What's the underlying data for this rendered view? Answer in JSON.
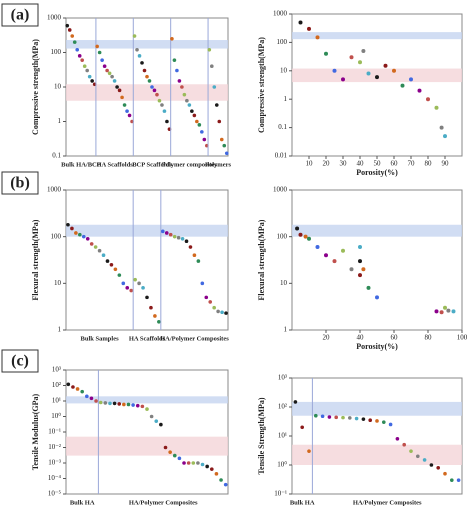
{
  "panels": [
    "(a)",
    "(b)",
    "(c)"
  ],
  "palette": [
    "#1a1a1a",
    "#8b1a1a",
    "#d2691e",
    "#2e8b57",
    "#4169e1",
    "#8b008b",
    "#c0504d",
    "#9bbb59",
    "#808080",
    "#4bacc6"
  ],
  "chart_data": [
    {
      "type": "strip",
      "y_label": "Compressive strength(MPa)",
      "log_y": true,
      "ylim": [
        0.1,
        1000
      ],
      "yticks": [
        0.1,
        1,
        10,
        100,
        1000
      ],
      "bands": [
        {
          "range": [
            130,
            230
          ],
          "color": "#c6d4f0"
        },
        {
          "range": [
            4,
            12
          ],
          "color": "#f4d4d8"
        }
      ],
      "groups": [
        {
          "label": "Bulk HA/BCP",
          "values": [
            600,
            450,
            300,
            200,
            120,
            80,
            60,
            40,
            30,
            20,
            15,
            12
          ]
        },
        {
          "label": "HA Scaffolds",
          "values": [
            150,
            100,
            60,
            40,
            30,
            25,
            20,
            15,
            10,
            8,
            5,
            3,
            2,
            1.5,
            1
          ]
        },
        {
          "label": "BCP Scaffolds",
          "values": [
            300,
            120,
            80,
            50,
            30,
            20,
            15,
            10,
            8,
            6,
            4,
            3,
            2,
            1,
            0.6
          ]
        },
        {
          "label": "Polymer composites",
          "values": [
            250,
            60,
            30,
            15,
            10,
            6,
            4,
            3,
            2,
            1.5,
            1,
            0.8,
            0.5,
            0.3,
            0.2
          ]
        },
        {
          "label": "Polymers",
          "values": [
            120,
            40,
            10,
            3,
            1,
            0.3,
            0.2,
            0.12
          ]
        }
      ]
    },
    {
      "type": "scatter",
      "y_label": "Compressive strength(MPa)",
      "x_label": "Porosity(%)",
      "log_y": true,
      "xlim": [
        0,
        100
      ],
      "xticks": [
        10,
        20,
        30,
        40,
        50,
        60,
        70,
        80,
        90
      ],
      "ylim": [
        0.01,
        1000
      ],
      "yticks": [
        0.01,
        0.1,
        1,
        10,
        100,
        1000
      ],
      "bands": [
        {
          "range": [
            130,
            230
          ],
          "color": "#c6d4f0"
        },
        {
          "range": [
            4,
            12
          ],
          "color": "#f4d4d8"
        }
      ],
      "x": [
        5,
        10,
        15,
        20,
        25,
        30,
        35,
        40,
        42,
        45,
        50,
        55,
        60,
        65,
        70,
        75,
        80,
        85,
        88,
        90
      ],
      "values": [
        500,
        300,
        150,
        40,
        10,
        5,
        30,
        20,
        50,
        8,
        6,
        15,
        10,
        3,
        5,
        2,
        1,
        0.5,
        0.1,
        0.05
      ]
    },
    {
      "type": "strip",
      "y_label": "Flexural strength(MPa)",
      "log_y": true,
      "ylim": [
        1,
        1000
      ],
      "yticks": [
        1,
        10,
        100,
        1000
      ],
      "bands": [
        {
          "range": [
            100,
            180
          ],
          "color": "#c6d4f0"
        }
      ],
      "groups": [
        {
          "label": "Bulk Samples",
          "values": [
            180,
            150,
            120,
            110,
            100,
            90,
            70,
            60,
            50,
            40,
            30,
            25,
            20,
            15,
            10,
            8,
            7
          ]
        },
        {
          "label": "HA Scaffolds",
          "values": [
            12,
            10,
            8,
            5,
            3,
            2,
            1.5
          ]
        },
        {
          "label": "HA/Polymer Composites",
          "values": [
            130,
            120,
            110,
            100,
            95,
            90,
            80,
            60,
            40,
            30,
            10,
            5,
            4,
            3,
            2.5,
            2.4,
            2.3
          ]
        }
      ]
    },
    {
      "type": "scatter",
      "y_label": "Flexural strength(MPa)",
      "x_label": "Porosity(%)",
      "log_y": true,
      "xlim": [
        0,
        100
      ],
      "xticks": [
        20,
        40,
        60,
        80,
        100
      ],
      "ylim": [
        1,
        1000
      ],
      "yticks": [
        1,
        10,
        100,
        1000
      ],
      "bands": [
        {
          "range": [
            100,
            180
          ],
          "color": "#c6d4f0"
        }
      ],
      "x": [
        3,
        5,
        8,
        10,
        15,
        20,
        25,
        30,
        35,
        40,
        40,
        40,
        42,
        45,
        50,
        85,
        88,
        90,
        92,
        95
      ],
      "values": [
        150,
        110,
        100,
        90,
        60,
        40,
        30,
        50,
        20,
        60,
        30,
        15,
        20,
        8,
        5,
        2.5,
        2.4,
        3,
        2.6,
        2.5
      ]
    },
    {
      "type": "strip",
      "y_label": "Tensile Modulus(GPa)",
      "log_y": true,
      "ylim": [
        1e-05,
        1000
      ],
      "yticks": [
        {
          "value": 1e-05,
          "label": "10⁻⁵"
        },
        {
          "value": 0.0001,
          "label": "10⁻⁴"
        },
        {
          "value": 0.001,
          "label": "10⁻³"
        },
        {
          "value": 0.01,
          "label": "10⁻²"
        },
        {
          "value": 0.1,
          "label": "10⁻¹"
        },
        {
          "value": 1,
          "label": "10⁰"
        },
        {
          "value": 10,
          "label": "10¹"
        },
        {
          "value": 100,
          "label": "10²"
        },
        {
          "value": 1000,
          "label": "10³"
        }
      ],
      "bands": [
        {
          "range": [
            7,
            20
          ],
          "color": "#c6d4f0"
        },
        {
          "range": [
            0.003,
            0.05
          ],
          "color": "#f4d4d8"
        }
      ],
      "groups": [
        {
          "label": "Bulk HA",
          "values": [
            120,
            80,
            60,
            40,
            20,
            15,
            10
          ]
        },
        {
          "label": "HA/Polymer Composites",
          "values": [
            8,
            7.5,
            7,
            7,
            6.5,
            6,
            6,
            5.5,
            5,
            4.5,
            3,
            1,
            0.5,
            0.3,
            0.01,
            0.005,
            0.003,
            0.002,
            0.001,
            0.001,
            0.001,
            0.001,
            0.0008,
            0.0006,
            0.0004,
            0.0002,
            8e-05,
            4e-05
          ]
        }
      ]
    },
    {
      "type": "strip",
      "y_label": "Tensile Strength(MPa)",
      "log_y": true,
      "ylim": [
        0.1,
        1000
      ],
      "yticks": [
        {
          "value": 0.1,
          "label": "10⁻¹"
        },
        {
          "value": 1,
          "label": "10⁰"
        },
        {
          "value": 10,
          "label": "10¹"
        },
        {
          "value": 100,
          "label": "10²"
        },
        {
          "value": 1000,
          "label": "10³"
        }
      ],
      "bands": [
        {
          "range": [
            50,
            150
          ],
          "color": "#c6d4f0"
        },
        {
          "range": [
            1,
            5
          ],
          "color": "#f4d4d8"
        }
      ],
      "groups": [
        {
          "label": "Bulk HA",
          "values": [
            150,
            20,
            3
          ]
        },
        {
          "label": "HA/Polymer Composites",
          "values": [
            50,
            48,
            45,
            44,
            43,
            42,
            40,
            38,
            35,
            33,
            30,
            25,
            8,
            5,
            3,
            2,
            1.5,
            1,
            0.8,
            0.5,
            0.3,
            0.3
          ]
        }
      ]
    }
  ]
}
